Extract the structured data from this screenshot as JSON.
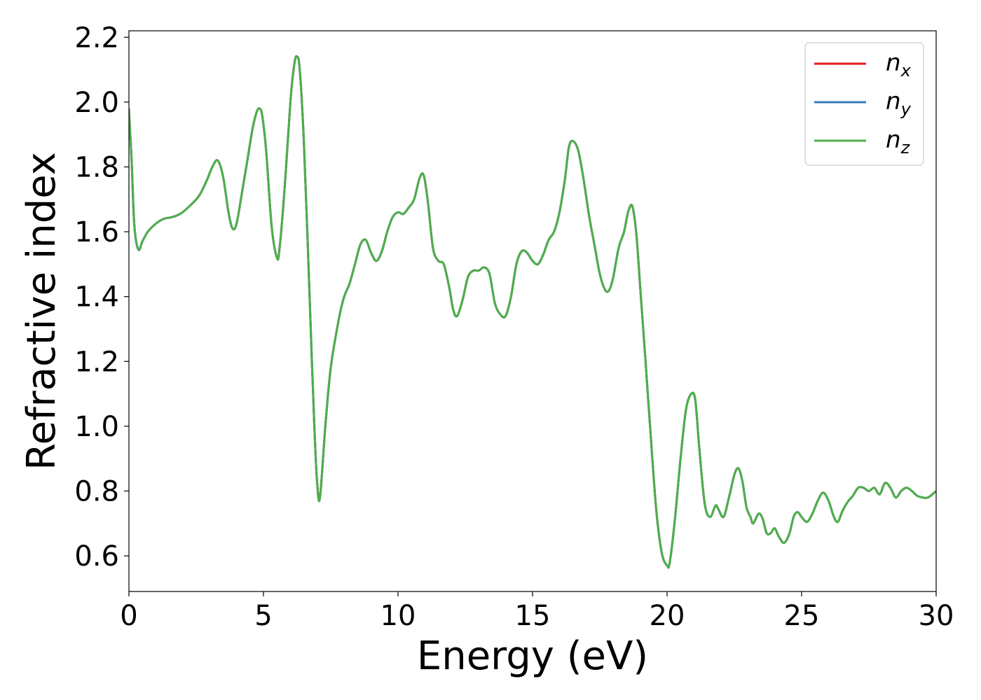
{
  "chart_data": {
    "type": "line",
    "title": "",
    "xlabel": "Energy (eV)",
    "ylabel": "Refractive index",
    "xlim": [
      0,
      30
    ],
    "ylim": [
      0.49,
      2.22
    ],
    "xticks": [
      0,
      5,
      10,
      15,
      20,
      25,
      30
    ],
    "xtick_labels": [
      "0",
      "5",
      "10",
      "15",
      "20",
      "25",
      "30"
    ],
    "yticks": [
      0.6,
      0.8,
      1.0,
      1.2,
      1.4,
      1.6,
      1.8,
      2.0,
      2.2
    ],
    "ytick_labels": [
      "0.6",
      "0.8",
      "1.0",
      "1.2",
      "1.4",
      "1.6",
      "1.8",
      "2.0",
      "2.2"
    ],
    "grid": false,
    "legend": {
      "position": "top-right"
    },
    "x": [
      0,
      0.1,
      0.2,
      0.35,
      0.5,
      0.7,
      1.0,
      1.3,
      1.6,
      1.9,
      2.2,
      2.6,
      2.9,
      3.1,
      3.3,
      3.5,
      3.7,
      3.85,
      4.0,
      4.2,
      4.4,
      4.6,
      4.75,
      4.85,
      4.95,
      5.1,
      5.3,
      5.5,
      5.6,
      5.8,
      6.0,
      6.15,
      6.25,
      6.35,
      6.5,
      6.65,
      6.8,
      6.9,
      7.0,
      7.1,
      7.3,
      7.5,
      7.8,
      8.0,
      8.2,
      8.4,
      8.6,
      8.8,
      9.0,
      9.2,
      9.4,
      9.6,
      9.8,
      10.0,
      10.2,
      10.4,
      10.6,
      10.8,
      10.95,
      11.1,
      11.3,
      11.5,
      11.7,
      11.9,
      12.05,
      12.2,
      12.4,
      12.6,
      12.8,
      13.0,
      13.2,
      13.4,
      13.6,
      13.8,
      14.0,
      14.2,
      14.4,
      14.6,
      14.8,
      15.0,
      15.2,
      15.4,
      15.6,
      15.8,
      16.0,
      16.2,
      16.35,
      16.5,
      16.7,
      16.9,
      17.1,
      17.3,
      17.5,
      17.7,
      17.85,
      18.0,
      18.2,
      18.4,
      18.55,
      18.7,
      18.85,
      19.0,
      19.2,
      19.4,
      19.6,
      19.8,
      20.0,
      20.1,
      20.3,
      20.5,
      20.7,
      20.9,
      21.05,
      21.2,
      21.4,
      21.6,
      21.8,
      21.9,
      22.1,
      22.3,
      22.5,
      22.65,
      22.8,
      22.95,
      23.1,
      23.2,
      23.4,
      23.55,
      23.7,
      23.85,
      24.0,
      24.15,
      24.35,
      24.55,
      24.7,
      24.85,
      25.0,
      25.2,
      25.4,
      25.6,
      25.8,
      26.0,
      26.2,
      26.35,
      26.5,
      26.7,
      26.9,
      27.1,
      27.3,
      27.5,
      27.7,
      27.9,
      28.1,
      28.3,
      28.5,
      28.7,
      28.9,
      29.1,
      29.3,
      29.5,
      29.7,
      30.0
    ],
    "y": [
      1.98,
      1.82,
      1.62,
      1.545,
      1.57,
      1.6,
      1.625,
      1.64,
      1.645,
      1.655,
      1.675,
      1.71,
      1.76,
      1.8,
      1.82,
      1.77,
      1.66,
      1.61,
      1.625,
      1.72,
      1.82,
      1.92,
      1.97,
      1.98,
      1.96,
      1.85,
      1.62,
      1.52,
      1.55,
      1.75,
      2.0,
      2.12,
      2.14,
      2.1,
      1.88,
      1.55,
      1.2,
      0.98,
      0.82,
      0.78,
      1.0,
      1.18,
      1.33,
      1.4,
      1.44,
      1.5,
      1.56,
      1.575,
      1.535,
      1.51,
      1.54,
      1.6,
      1.645,
      1.66,
      1.655,
      1.675,
      1.7,
      1.765,
      1.775,
      1.7,
      1.55,
      1.51,
      1.5,
      1.43,
      1.36,
      1.34,
      1.39,
      1.46,
      1.48,
      1.48,
      1.49,
      1.47,
      1.38,
      1.345,
      1.34,
      1.4,
      1.5,
      1.54,
      1.535,
      1.51,
      1.5,
      1.53,
      1.575,
      1.6,
      1.66,
      1.76,
      1.86,
      1.88,
      1.85,
      1.76,
      1.65,
      1.56,
      1.47,
      1.42,
      1.42,
      1.46,
      1.55,
      1.6,
      1.66,
      1.68,
      1.6,
      1.43,
      1.2,
      0.96,
      0.74,
      0.61,
      0.57,
      0.58,
      0.72,
      0.9,
      1.05,
      1.1,
      1.08,
      0.93,
      0.76,
      0.72,
      0.755,
      0.745,
      0.72,
      0.78,
      0.85,
      0.87,
      0.83,
      0.75,
      0.72,
      0.7,
      0.73,
      0.715,
      0.67,
      0.67,
      0.685,
      0.66,
      0.64,
      0.67,
      0.72,
      0.735,
      0.72,
      0.705,
      0.73,
      0.77,
      0.795,
      0.77,
      0.72,
      0.705,
      0.735,
      0.765,
      0.785,
      0.81,
      0.81,
      0.8,
      0.81,
      0.79,
      0.825,
      0.81,
      0.78,
      0.8,
      0.81,
      0.8,
      0.785,
      0.78,
      0.78,
      0.8
    ],
    "series": [
      {
        "name": "n_x",
        "label_base": "n",
        "label_sub": "x",
        "color": "#e41a1c"
      },
      {
        "name": "n_y",
        "label_base": "n",
        "label_sub": "y",
        "color": "#377eb8"
      },
      {
        "name": "n_z",
        "label_base": "n",
        "label_sub": "z",
        "color": "#4daf4a"
      }
    ]
  }
}
